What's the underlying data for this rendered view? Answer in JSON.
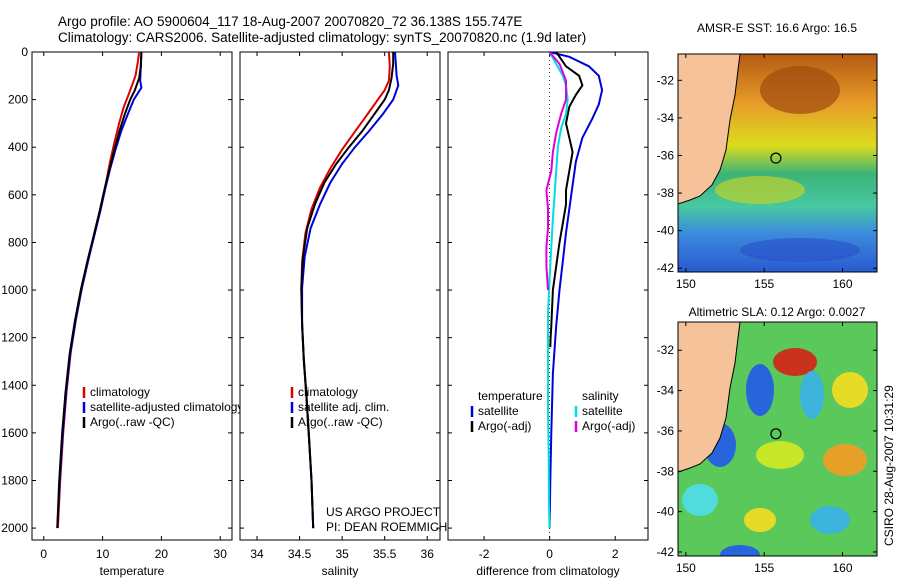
{
  "titles": {
    "line1": "Argo profile: AO 5900604_117 18-Aug-2007 20070820_72 36.138S 155.747E",
    "line2": "Climatology: CARS2006. Satellite-adjusted climatology: synTS_20070820.nc (1.9d later)"
  },
  "stamp": "CSIRO 28-Aug-2007 10:31:29",
  "colors": {
    "climatology": "#dd0000",
    "satellite": "#0000dd",
    "argo": "#000000",
    "satellite_sal": "#00dddd",
    "argo_sal": "#dd00dd",
    "land": "#f5c29a"
  },
  "chart_data": [
    {
      "type": "line",
      "id": "temperature",
      "xlabel": "temperature",
      "xlim": [
        -2,
        32
      ],
      "ylim": [
        2050,
        0
      ],
      "xticks": [
        0,
        10,
        20,
        30
      ],
      "yticks": [
        0,
        200,
        400,
        600,
        800,
        1000,
        1200,
        1400,
        1600,
        1800,
        2000
      ],
      "legend": [
        "climatology",
        "satellite-adjusted climatology",
        "Argo(..raw -QC)"
      ],
      "series": [
        {
          "name": "climatology",
          "color": "#dd0000",
          "points": [
            [
              16.2,
              0
            ],
            [
              16.0,
              40
            ],
            [
              15.6,
              100
            ],
            [
              15.0,
              140
            ],
            [
              14.4,
              180
            ],
            [
              13.6,
              230
            ],
            [
              12.8,
              300
            ],
            [
              12.0,
              380
            ],
            [
              11.2,
              470
            ],
            [
              10.5,
              560
            ],
            [
              9.6,
              660
            ],
            [
              8.6,
              760
            ],
            [
              7.6,
              870
            ],
            [
              6.5,
              990
            ],
            [
              5.5,
              1120
            ],
            [
              4.6,
              1260
            ],
            [
              3.9,
              1420
            ],
            [
              3.3,
              1600
            ],
            [
              2.8,
              1800
            ],
            [
              2.4,
              2000
            ]
          ]
        },
        {
          "name": "satellite-adjusted climatology",
          "color": "#0000dd",
          "points": [
            [
              16.6,
              0
            ],
            [
              16.5,
              60
            ],
            [
              16.4,
              120
            ],
            [
              16.6,
              150
            ],
            [
              15.3,
              200
            ],
            [
              14.3,
              260
            ],
            [
              13.2,
              330
            ],
            [
              12.2,
              410
            ],
            [
              11.3,
              490
            ],
            [
              10.5,
              570
            ],
            [
              9.6,
              670
            ],
            [
              8.6,
              770
            ],
            [
              7.5,
              880
            ],
            [
              6.4,
              1000
            ],
            [
              5.4,
              1130
            ],
            [
              4.5,
              1270
            ],
            [
              3.8,
              1430
            ],
            [
              3.2,
              1610
            ],
            [
              2.7,
              1810
            ],
            [
              2.3,
              2000
            ]
          ]
        },
        {
          "name": "Argo(..raw -QC)",
          "color": "#000000",
          "points": [
            [
              16.6,
              0
            ],
            [
              16.5,
              60
            ],
            [
              16.2,
              110
            ],
            [
              15.5,
              160
            ],
            [
              14.7,
              200
            ],
            [
              13.8,
              260
            ],
            [
              12.9,
              330
            ],
            [
              12.0,
              410
            ],
            [
              11.2,
              490
            ],
            [
              10.4,
              570
            ],
            [
              9.5,
              670
            ],
            [
              8.5,
              770
            ],
            [
              7.4,
              880
            ],
            [
              6.3,
              1000
            ],
            [
              5.3,
              1130
            ],
            [
              4.4,
              1270
            ],
            [
              3.7,
              1430
            ],
            [
              3.1,
              1610
            ],
            [
              2.6,
              1810
            ],
            [
              2.3,
              2000
            ]
          ]
        }
      ]
    },
    {
      "type": "line",
      "id": "salinity",
      "xlabel": "salinity",
      "xlim": [
        33.8,
        36.15
      ],
      "ylim": [
        2050,
        0
      ],
      "xticks": [
        34,
        34.5,
        35,
        35.5,
        36
      ],
      "yticks": [
        0,
        200,
        400,
        600,
        800,
        1000,
        1200,
        1400,
        1600,
        1800,
        2000
      ],
      "legend": [
        "climatology",
        "satellite adj. clim.",
        "Argo(..raw -QC)"
      ],
      "note": [
        "US ARGO PROJECT",
        "PI: DEAN ROEMMICH"
      ],
      "series": [
        {
          "name": "climatology",
          "color": "#dd0000",
          "points": [
            [
              35.55,
              0
            ],
            [
              35.56,
              60
            ],
            [
              35.55,
              120
            ],
            [
              35.5,
              160
            ],
            [
              35.4,
              210
            ],
            [
              35.28,
              270
            ],
            [
              35.14,
              340
            ],
            [
              35.0,
              410
            ],
            [
              34.86,
              490
            ],
            [
              34.74,
              570
            ],
            [
              34.64,
              660
            ],
            [
              34.57,
              760
            ],
            [
              34.53,
              880
            ],
            [
              34.52,
              1000
            ],
            [
              34.53,
              1150
            ],
            [
              34.55,
              1300
            ],
            [
              34.58,
              1450
            ],
            [
              34.61,
              1620
            ],
            [
              34.64,
              1800
            ],
            [
              34.66,
              2000
            ]
          ]
        },
        {
          "name": "satellite adj. clim.",
          "color": "#0000dd",
          "points": [
            [
              35.62,
              0
            ],
            [
              35.63,
              40
            ],
            [
              35.64,
              100
            ],
            [
              35.66,
              140
            ],
            [
              35.6,
              200
            ],
            [
              35.48,
              260
            ],
            [
              35.32,
              330
            ],
            [
              35.15,
              400
            ],
            [
              35.0,
              470
            ],
            [
              34.86,
              550
            ],
            [
              34.74,
              640
            ],
            [
              34.63,
              740
            ],
            [
              34.56,
              860
            ],
            [
              34.53,
              990
            ],
            [
              34.53,
              1140
            ],
            [
              34.55,
              1290
            ],
            [
              34.58,
              1440
            ],
            [
              34.61,
              1610
            ],
            [
              34.64,
              1800
            ],
            [
              34.66,
              2000
            ]
          ]
        },
        {
          "name": "Argo(..raw -QC)",
          "color": "#000000",
          "points": [
            [
              35.6,
              0
            ],
            [
              35.6,
              50
            ],
            [
              35.58,
              110
            ],
            [
              35.55,
              160
            ],
            [
              35.5,
              200
            ],
            [
              35.38,
              260
            ],
            [
              35.24,
              330
            ],
            [
              35.08,
              400
            ],
            [
              34.93,
              470
            ],
            [
              34.79,
              550
            ],
            [
              34.68,
              640
            ],
            [
              34.59,
              740
            ],
            [
              34.54,
              860
            ],
            [
              34.52,
              990
            ],
            [
              34.53,
              1140
            ],
            [
              34.55,
              1290
            ],
            [
              34.58,
              1440
            ],
            [
              34.61,
              1610
            ],
            [
              34.64,
              1800
            ],
            [
              34.66,
              2000
            ]
          ]
        }
      ]
    },
    {
      "type": "line",
      "id": "difference",
      "xlabel": "difference from climatology",
      "xlim": [
        -3.1,
        3.0
      ],
      "ylim": [
        2050,
        0
      ],
      "xticks": [
        -2,
        0,
        2
      ],
      "yticks": [
        0,
        200,
        400,
        600,
        800,
        1000,
        1200,
        1400,
        1600,
        1800,
        2000
      ],
      "legend_left": {
        "header": "temperature",
        "items": [
          "satellite",
          "Argo(-adj)"
        ]
      },
      "legend_right": {
        "header": "salinity",
        "items": [
          "satellite",
          "Argo(-adj)"
        ]
      },
      "series": [
        {
          "name": "temperature satellite",
          "color": "#0000dd",
          "points": [
            [
              0.0,
              0
            ],
            [
              0.6,
              20
            ],
            [
              1.2,
              60
            ],
            [
              1.5,
              100
            ],
            [
              1.6,
              160
            ],
            [
              1.5,
              220
            ],
            [
              1.3,
              280
            ],
            [
              1.0,
              360
            ],
            [
              0.8,
              460
            ],
            [
              0.7,
              560
            ],
            [
              0.6,
              660
            ],
            [
              0.5,
              760
            ],
            [
              0.4,
              880
            ],
            [
              0.3,
              1000
            ],
            [
              0.2,
              1150
            ],
            [
              0.1,
              1350
            ],
            [
              0.05,
              1600
            ],
            [
              0.02,
              1800
            ],
            [
              0.0,
              2000
            ]
          ]
        },
        {
          "name": "temperature Argo(-adj)",
          "color": "#000000",
          "points": [
            [
              0.2,
              0
            ],
            [
              0.5,
              60
            ],
            [
              0.9,
              100
            ],
            [
              1.0,
              140
            ],
            [
              0.8,
              180
            ],
            [
              0.6,
              230
            ],
            [
              0.5,
              300
            ],
            [
              0.6,
              360
            ],
            [
              0.7,
              420
            ],
            [
              0.6,
              500
            ],
            [
              0.5,
              580
            ],
            [
              0.5,
              640
            ],
            [
              0.4,
              720
            ],
            [
              0.3,
              800
            ],
            [
              0.2,
              900
            ],
            [
              0.1,
              1000
            ],
            [
              0.05,
              1150
            ],
            [
              0.03,
              1200
            ],
            [
              0.02,
              1240
            ]
          ]
        },
        {
          "name": "salinity satellite",
          "color": "#00dddd",
          "points": [
            [
              0.0,
              0
            ],
            [
              0.2,
              50
            ],
            [
              0.4,
              100
            ],
            [
              0.5,
              140
            ],
            [
              0.55,
              200
            ],
            [
              0.5,
              260
            ],
            [
              0.35,
              320
            ],
            [
              0.25,
              400
            ],
            [
              0.2,
              500
            ],
            [
              0.15,
              600
            ],
            [
              0.1,
              700
            ],
            [
              0.05,
              820
            ],
            [
              0.0,
              950
            ],
            [
              -0.05,
              1100
            ],
            [
              -0.05,
              1300
            ],
            [
              -0.05,
              1500
            ],
            [
              -0.03,
              1700
            ],
            [
              -0.02,
              1900
            ],
            [
              0.0,
              2000
            ]
          ]
        },
        {
          "name": "salinity Argo(-adj)",
          "color": "#dd00dd",
          "points": [
            [
              0.0,
              0
            ],
            [
              0.3,
              50
            ],
            [
              0.5,
              120
            ],
            [
              0.5,
              200
            ],
            [
              0.35,
              260
            ],
            [
              0.2,
              340
            ],
            [
              0.1,
              420
            ],
            [
              0.05,
              500
            ],
            [
              -0.1,
              580
            ],
            [
              -0.05,
              660
            ],
            [
              -0.05,
              740
            ],
            [
              -0.1,
              820
            ],
            [
              -0.1,
              900
            ],
            [
              -0.05,
              1000
            ]
          ]
        }
      ]
    }
  ],
  "maps": [
    {
      "id": "sst",
      "title": "AMSR-E SST: 16.6 Argo: 16.5",
      "xticks": [
        150,
        155,
        160
      ],
      "yticks": [
        -32,
        -34,
        -36,
        -38,
        -40,
        -42
      ],
      "xlim": [
        149.5,
        162.2
      ],
      "ylim": [
        -42.2,
        -30.6
      ],
      "point": [
        155.75,
        -36.14
      ]
    },
    {
      "id": "sla",
      "title": "Altimetric SLA: 0.12 Argo: 0.0027",
      "xticks": [
        150,
        155,
        160
      ],
      "yticks": [
        -32,
        -34,
        -36,
        -38,
        -40,
        -42
      ],
      "xlim": [
        149.5,
        162.2
      ],
      "ylim": [
        -42.2,
        -30.6
      ],
      "point": [
        155.75,
        -36.14
      ]
    }
  ]
}
